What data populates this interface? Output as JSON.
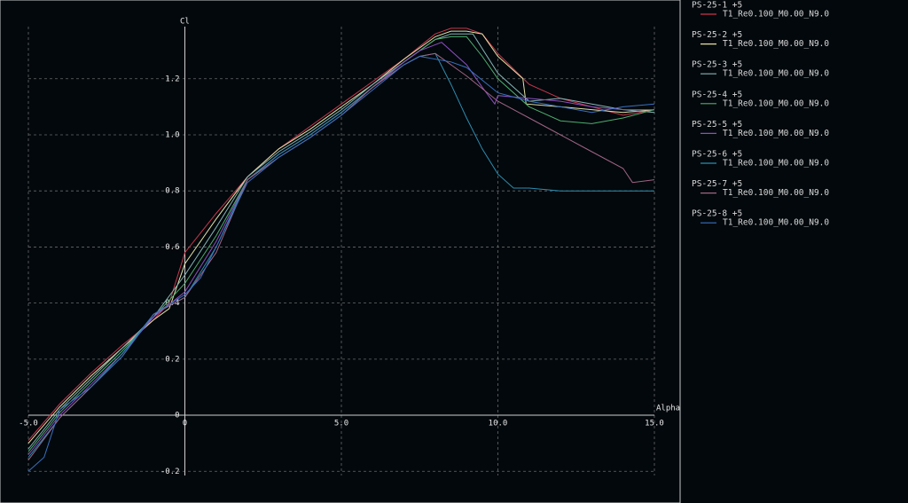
{
  "chart_data": {
    "type": "line",
    "x_label": "Alpha",
    "y_label": "Cl",
    "xlim": [
      -5,
      15
    ],
    "ylim": [
      -0.215,
      1.386
    ],
    "xticks": [
      {
        "value": -5,
        "label": "-5.0"
      },
      0,
      {
        "value": 5,
        "label": "5.0"
      },
      {
        "value": 10,
        "label": "10.0"
      },
      {
        "value": 15,
        "label": "15.0"
      }
    ],
    "yticks": [
      -0.2,
      0,
      0.2,
      0.4,
      0.6,
      0.8,
      {
        "value": 1,
        "label": "1.0"
      },
      1.2
    ],
    "grid": true,
    "series": [
      {
        "name": "PS-25-1 +5",
        "polar": "T1_Re0.100_M0.00_N9.0",
        "color": "#c8374c",
        "x": [
          -5,
          -4,
          -3,
          -2,
          -1,
          -0.5,
          0,
          1,
          2,
          3,
          4,
          5,
          6,
          7,
          8,
          8.5,
          9,
          9.5,
          10,
          11,
          12,
          13,
          14,
          15
        ],
        "values": [
          -0.09,
          0.04,
          0.15,
          0.25,
          0.34,
          0.4,
          0.58,
          0.72,
          0.85,
          0.95,
          1.03,
          1.11,
          1.19,
          1.27,
          1.36,
          1.38,
          1.38,
          1.36,
          1.29,
          1.18,
          1.13,
          1.1,
          1.07,
          1.09
        ]
      },
      {
        "name": "PS-25-2 +5",
        "polar": "T1_Re0.100_M0.00_N9.0",
        "color": "#e2e2a6",
        "x": [
          -5,
          -4,
          -3,
          -2,
          -1,
          -0.5,
          0,
          1,
          2,
          3,
          4,
          5,
          6,
          7,
          8,
          8.5,
          9,
          9.5,
          10,
          10.8,
          10.9,
          12,
          13,
          14,
          15
        ],
        "values": [
          -0.1,
          0.03,
          0.14,
          0.24,
          0.34,
          0.38,
          0.54,
          0.7,
          0.85,
          0.95,
          1.02,
          1.1,
          1.18,
          1.27,
          1.35,
          1.37,
          1.37,
          1.36,
          1.28,
          1.2,
          1.11,
          1.1,
          1.09,
          1.08,
          1.09
        ]
      },
      {
        "name": "PS-25-3 +5",
        "polar": "T1_Re0.100_M0.00_N9.0",
        "color": "#86b4b4",
        "x": [
          -5,
          -4,
          -3,
          -2,
          -1,
          0,
          1,
          2,
          3,
          4,
          5,
          6,
          7,
          8,
          8.5,
          9.2,
          10,
          11,
          12,
          13,
          14,
          15
        ],
        "values": [
          -0.12,
          0.02,
          0.13,
          0.24,
          0.35,
          0.5,
          0.67,
          0.85,
          0.94,
          1.01,
          1.09,
          1.18,
          1.26,
          1.34,
          1.36,
          1.36,
          1.22,
          1.12,
          1.13,
          1.11,
          1.09,
          1.08
        ]
      },
      {
        "name": "PS-25-4 +5",
        "polar": "T1_Re0.100_M0.00_N9.0",
        "color": "#4fae6e",
        "x": [
          -5,
          -4,
          -3,
          -2,
          -1,
          0,
          1,
          2,
          3,
          4,
          5,
          6,
          7,
          8,
          8.5,
          9,
          9.5,
          10,
          11,
          12,
          13,
          14,
          15
        ],
        "values": [
          -0.13,
          0.01,
          0.12,
          0.23,
          0.35,
          0.47,
          0.64,
          0.84,
          0.93,
          1.0,
          1.08,
          1.17,
          1.26,
          1.34,
          1.35,
          1.35,
          1.28,
          1.2,
          1.1,
          1.05,
          1.04,
          1.06,
          1.09
        ]
      },
      {
        "name": "PS-25-5 +5",
        "polar": "T1_Re0.100_M0.00_N9.0",
        "color": "#8d4fc0",
        "x": [
          -5,
          -4,
          -3,
          -2,
          -1,
          0,
          1,
          2,
          3,
          4,
          5,
          6,
          7,
          7.5,
          8.2,
          9,
          9.5,
          9.9,
          10,
          11,
          12,
          13,
          14,
          15
        ],
        "values": [
          -0.14,
          0.0,
          0.11,
          0.22,
          0.35,
          0.44,
          0.62,
          0.84,
          0.93,
          1.0,
          1.08,
          1.17,
          1.26,
          1.3,
          1.33,
          1.25,
          1.17,
          1.11,
          1.14,
          1.13,
          1.12,
          1.1,
          1.09,
          1.09
        ]
      },
      {
        "name": "PS-25-6 +5",
        "polar": "T1_Re0.100_M0.00_N9.0",
        "color": "#2e8db0",
        "x": [
          -5,
          -4,
          -3,
          -2,
          -1,
          0,
          1,
          2,
          3,
          4,
          5,
          6,
          7,
          7.5,
          8,
          8.5,
          9,
          9.5,
          10,
          10.5,
          11,
          12,
          13,
          14,
          15
        ],
        "values": [
          -0.15,
          -0.01,
          0.1,
          0.22,
          0.36,
          0.42,
          0.6,
          0.84,
          0.93,
          1.0,
          1.08,
          1.17,
          1.25,
          1.28,
          1.29,
          1.18,
          1.06,
          0.95,
          0.86,
          0.81,
          0.81,
          0.8,
          0.8,
          0.8,
          0.8
        ]
      },
      {
        "name": "PS-25-7 +5",
        "polar": "T1_Re0.100_M0.00_N9.0",
        "color": "#a06484",
        "x": [
          -5,
          -4,
          -3,
          -2,
          -1,
          0,
          1,
          2,
          3,
          4,
          5,
          6,
          7,
          7.5,
          8,
          9,
          10,
          11,
          12,
          13,
          14,
          14.3,
          15
        ],
        "values": [
          -0.16,
          -0.01,
          0.1,
          0.21,
          0.36,
          0.42,
          0.58,
          0.84,
          0.92,
          0.99,
          1.07,
          1.17,
          1.25,
          1.28,
          1.29,
          1.21,
          1.12,
          1.06,
          1.0,
          0.94,
          0.88,
          0.83,
          0.84
        ]
      },
      {
        "name": "PS-25-8 +5",
        "polar": "T1_Re0.100_M0.00_N9.0",
        "color": "#3a70c0",
        "x": [
          -5,
          -4.5,
          -4,
          -3,
          -2,
          -1,
          0,
          0.5,
          1,
          2,
          3,
          4,
          5,
          6,
          7,
          7.5,
          8.5,
          9,
          10,
          11,
          12,
          13,
          14,
          15
        ],
        "values": [
          -0.2,
          -0.15,
          0.02,
          0.1,
          0.21,
          0.36,
          0.43,
          0.49,
          0.6,
          0.83,
          0.92,
          0.99,
          1.07,
          1.16,
          1.25,
          1.28,
          1.26,
          1.24,
          1.15,
          1.12,
          1.1,
          1.08,
          1.1,
          1.11
        ]
      }
    ]
  }
}
